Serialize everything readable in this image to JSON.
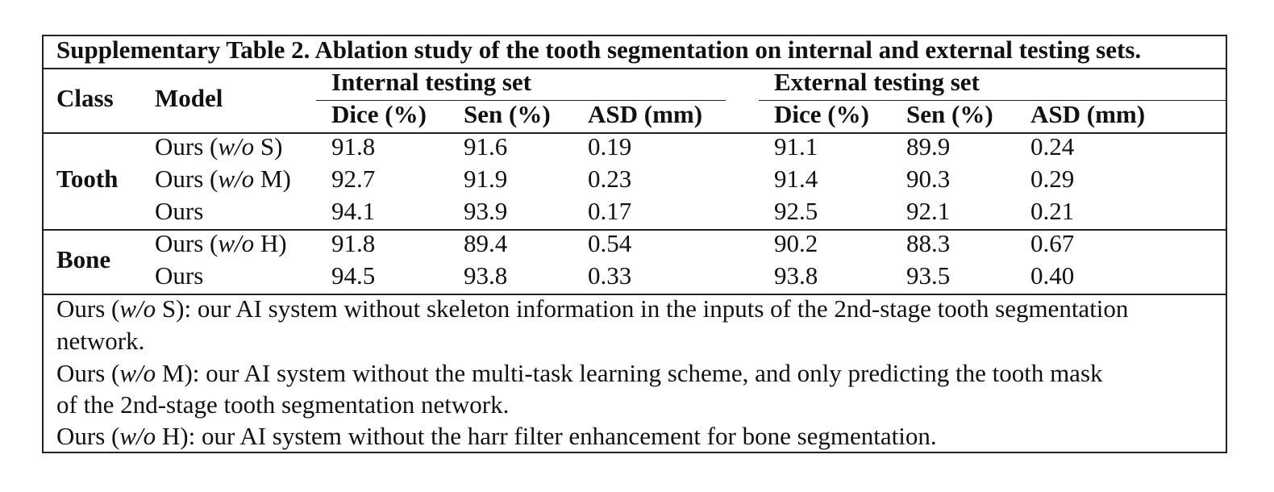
{
  "caption": "Supplementary Table 2. Ablation study of the tooth segmentation on internal and external testing sets.",
  "header": {
    "class_label": "Class",
    "model_label": "Model",
    "internal_label": "Internal testing set",
    "external_label": "External testing set",
    "metrics": [
      "Dice (%)",
      "Sen (%)",
      "ASD (mm)"
    ]
  },
  "groups": [
    {
      "class": "Tooth",
      "rows": [
        {
          "model_prefix": "Ours (",
          "model_italic": "w/o",
          "model_suffix": " S)",
          "values": [
            "91.8",
            "91.6",
            "0.19",
            "91.1",
            "89.9",
            "0.24"
          ]
        },
        {
          "model_prefix": "Ours (",
          "model_italic": "w/o",
          "model_suffix": " M)",
          "values": [
            "92.7",
            "91.9",
            "0.23",
            "91.4",
            "90.3",
            "0.29"
          ]
        },
        {
          "model_prefix": "Ours",
          "model_italic": "",
          "model_suffix": "",
          "values": [
            "94.1",
            "93.9",
            "0.17",
            "92.5",
            "92.1",
            "0.21"
          ]
        }
      ]
    },
    {
      "class": "Bone",
      "rows": [
        {
          "model_prefix": "Ours (",
          "model_italic": "w/o",
          "model_suffix": " H)",
          "values": [
            "91.8",
            "89.4",
            "0.54",
            "90.2",
            "88.3",
            "0.67"
          ]
        },
        {
          "model_prefix": "Ours",
          "model_italic": "",
          "model_suffix": "",
          "values": [
            "94.5",
            "93.8",
            "0.33",
            "93.8",
            "93.5",
            "0.40"
          ]
        }
      ]
    }
  ],
  "notes": [
    {
      "prefix": "Ours (",
      "italic": "w/o",
      "suffix": " S): our AI system without skeleton information in the inputs of the 2nd-stage tooth segmentation"
    },
    {
      "prefix": "network.",
      "italic": "",
      "suffix": ""
    },
    {
      "prefix": "Ours (",
      "italic": "w/o",
      "suffix": " M): our AI system without the multi-task learning scheme, and only predicting the tooth mask"
    },
    {
      "prefix": "of the 2nd-stage tooth segmentation network.",
      "italic": "",
      "suffix": ""
    },
    {
      "prefix": "Ours (",
      "italic": "w/o",
      "suffix": " H): our AI system without the harr filter enhancement for bone segmentation."
    }
  ]
}
